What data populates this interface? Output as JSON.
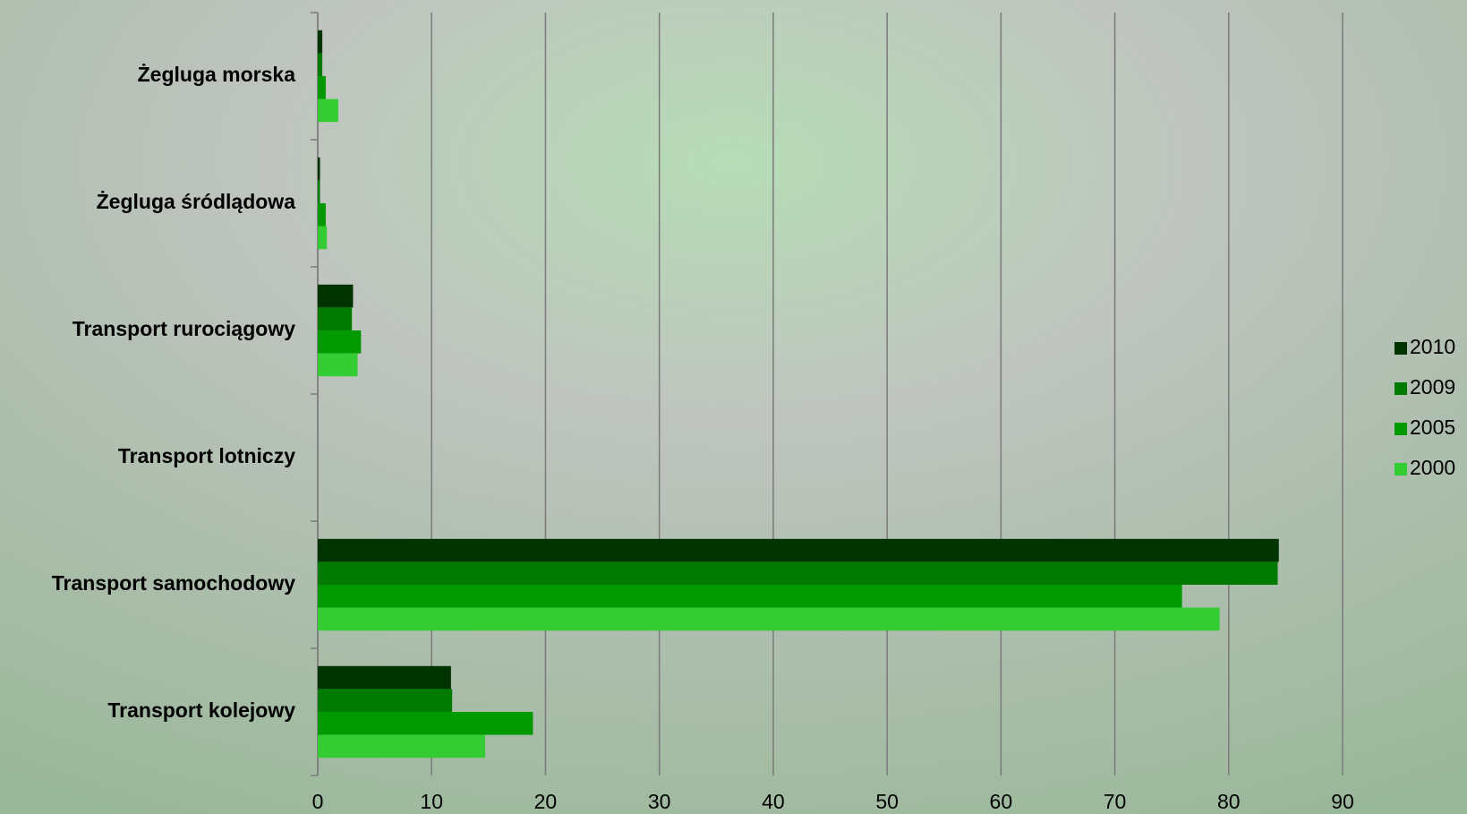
{
  "chart_data": {
    "type": "hbar",
    "categories": [
      "Żegluga morska",
      "Żegluga śródlądowa",
      "Transport rurociągowy",
      "Transport lotniczy",
      "Transport samochodowy",
      "Transport kolejowy"
    ],
    "series": [
      {
        "name": "2010",
        "color": "#003300",
        "values": [
          0.4,
          0.2,
          3.1,
          0,
          84.4,
          11.7
        ]
      },
      {
        "name": "2009",
        "color": "#007a00",
        "values": [
          0.4,
          0.2,
          3.0,
          0,
          84.3,
          11.8
        ]
      },
      {
        "name": "2005",
        "color": "#009900",
        "values": [
          0.7,
          0.7,
          3.8,
          0,
          75.9,
          18.9
        ]
      },
      {
        "name": "2000",
        "color": "#33cc33",
        "values": [
          1.8,
          0.8,
          3.5,
          0,
          79.2,
          14.7
        ]
      }
    ],
    "xlim": [
      0,
      90
    ],
    "xticks": [
      0,
      10,
      20,
      30,
      40,
      50,
      60,
      70,
      80,
      90
    ],
    "grid": true,
    "legend": "right"
  }
}
